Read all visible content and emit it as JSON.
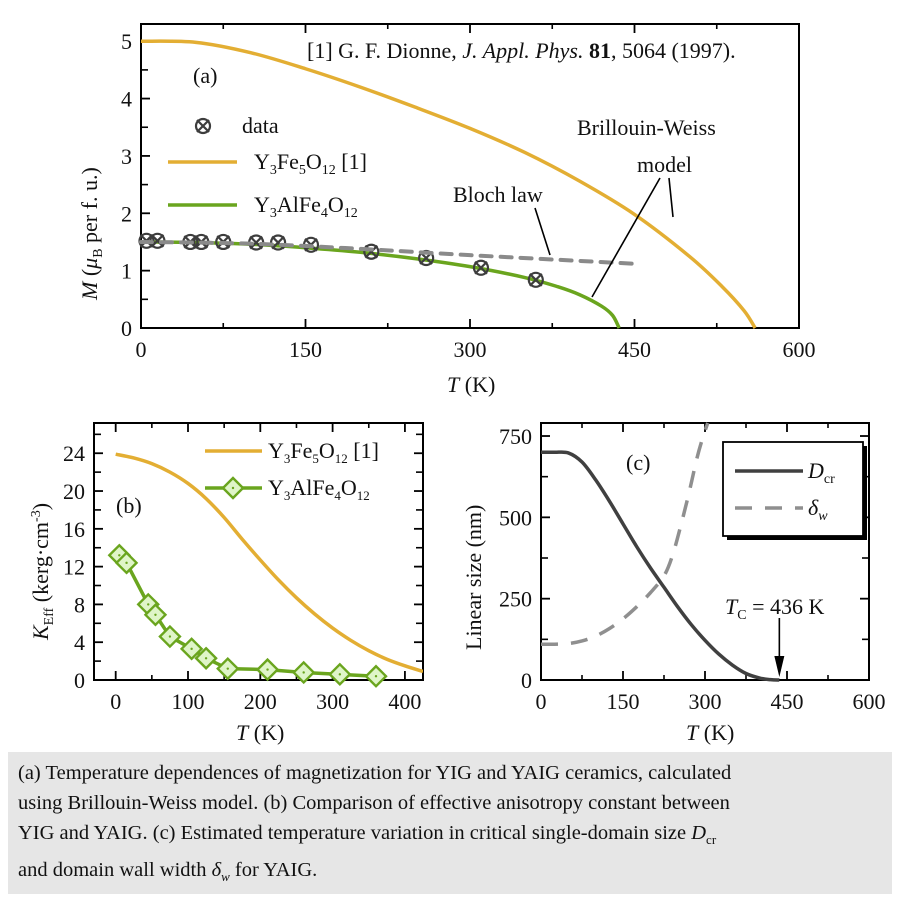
{
  "colors": {
    "yig": "#E3AE33",
    "yaig": "#6AA51E",
    "yaig_marker_fill": "#DFF5C8",
    "bloch": "#8A8A8A",
    "data_marker": "#3d3d3d",
    "dcr": "#404040",
    "delta_w": "#8F8F8F",
    "caption_bg": "#e6e6e6"
  },
  "caption": {
    "line1": "(a) Temperature dependences of magnetization for YIG and YAIG ceramics, calculated",
    "line2": "using Brillouin-Weiss model. (b) Comparison of effective anisotropy constant between",
    "line3_pre": "YIG and YAIG. (c) Estimated temperature variation in critical single-domain size ",
    "line3_sym": "D",
    "line3_sub": "cr",
    "line4_pre": "and domain wall width ",
    "line4_sym": "δ",
    "line4_sub": "w",
    "line4_post": " for YAIG."
  },
  "chart_data": [
    {
      "id": "a",
      "type": "line",
      "panel_label": "(a)",
      "reference": {
        "pre": "[1] G. F. Dionne, ",
        "journal": "J. Appl. Phys.",
        "vol": "81",
        "post": ", 5064 (1997)."
      },
      "xlabel": {
        "sym": "T",
        "unit": " (K)"
      },
      "ylabel": {
        "sym": "M",
        "open": " (",
        "mu": "μ",
        "mu_sub": "B",
        "rest": " per f. u.)"
      },
      "xlim": [
        0,
        600
      ],
      "ylim": [
        0,
        5.3
      ],
      "xticks": [
        0,
        150,
        300,
        450,
        600
      ],
      "xtick_labels": [
        "0",
        "150",
        "300",
        "450",
        "600"
      ],
      "xminor": [
        75,
        225,
        375,
        525
      ],
      "yticks": [
        0,
        1,
        2,
        3,
        4,
        5
      ],
      "ytick_labels": [
        "0",
        "1",
        "2",
        "3",
        "4",
        "5"
      ],
      "yminor": [
        0.5,
        1.5,
        2.5,
        3.5,
        4.5
      ],
      "legend": [
        {
          "label": "data",
          "kind": "marker"
        },
        {
          "label_main": "Y",
          "s1": "3",
          "m1": "Fe",
          "s2": "5",
          "m2": "O",
          "s3": "12",
          "tail": " [1]",
          "kind": "yig"
        },
        {
          "label_main": "Y",
          "s1": "3",
          "m1": "AlFe",
          "s2": "4",
          "m2": "O",
          "s3": "12",
          "tail": "",
          "kind": "yaig"
        }
      ],
      "annotations": {
        "bloch": "Bloch law",
        "bw1": "Brillouin-Weiss",
        "bw2": "model"
      },
      "series": [
        {
          "name": "Y3Fe5O12 [1] (Brillouin-Weiss)",
          "x": [
            0,
            50,
            100,
            150,
            200,
            250,
            300,
            350,
            400,
            450,
            500,
            530,
            550,
            560
          ],
          "y": [
            5.0,
            4.98,
            4.8,
            4.52,
            4.2,
            3.85,
            3.48,
            3.06,
            2.56,
            1.98,
            1.25,
            0.72,
            0.3,
            0.0
          ]
        },
        {
          "name": "Y3AlFe4O12 (Brillouin-Weiss)",
          "x": [
            0,
            50,
            100,
            150,
            200,
            250,
            300,
            350,
            380,
            400,
            420,
            430,
            436
          ],
          "y": [
            1.5,
            1.49,
            1.46,
            1.4,
            1.32,
            1.21,
            1.07,
            0.88,
            0.72,
            0.58,
            0.38,
            0.22,
            0.0
          ]
        },
        {
          "name": "Bloch law",
          "x": [
            0,
            100,
            200,
            300,
            450
          ],
          "y": [
            1.5,
            1.47,
            1.38,
            1.27,
            1.12
          ]
        },
        {
          "name": "data",
          "x": [
            5,
            15,
            45,
            55,
            75,
            105,
            125,
            155,
            210,
            260,
            310,
            360
          ],
          "y": [
            1.52,
            1.52,
            1.5,
            1.5,
            1.5,
            1.49,
            1.49,
            1.45,
            1.33,
            1.22,
            1.05,
            0.84
          ]
        }
      ]
    },
    {
      "id": "b",
      "type": "line",
      "panel_label": "(b)",
      "xlabel": {
        "sym": "T",
        "unit": " (K)"
      },
      "ylabel": {
        "sym": "K",
        "sub": "Eff",
        "rest": " (kerg·cm",
        "sup": "-3",
        "close": ")"
      },
      "xlim": [
        -30,
        425
      ],
      "ylim": [
        0,
        27.2
      ],
      "xticks": [
        0,
        100,
        200,
        300,
        400
      ],
      "xtick_labels": [
        "0",
        "100",
        "200",
        "300",
        "400"
      ],
      "xminor": [
        50,
        150,
        250,
        350
      ],
      "yticks": [
        0,
        4,
        8,
        12,
        16,
        20,
        24
      ],
      "ytick_labels": [
        "0",
        "4",
        "8",
        "12",
        "16",
        "20",
        "24"
      ],
      "yminor": [
        2,
        6,
        10,
        14,
        18,
        22,
        26
      ],
      "legend": [
        {
          "label_main": "Y",
          "s1": "3",
          "m1": "Fe",
          "s2": "5",
          "m2": "O",
          "s3": "12",
          "tail": " [1]",
          "kind": "yig"
        },
        {
          "label_main": "Y",
          "s1": "3",
          "m1": "AlFe",
          "s2": "4",
          "m2": "O",
          "s3": "12",
          "tail": "",
          "kind": "yaig"
        }
      ],
      "series": [
        {
          "name": "Y3Fe5O12 [1]",
          "x": [
            0,
            25,
            50,
            75,
            100,
            125,
            150,
            175,
            200,
            225,
            250,
            275,
            300,
            325,
            350,
            375,
            400,
            425
          ],
          "y": [
            23.9,
            23.5,
            22.9,
            22.0,
            20.8,
            19.2,
            17.2,
            14.9,
            12.7,
            10.6,
            8.7,
            7.0,
            5.5,
            4.2,
            3.1,
            2.2,
            1.5,
            0.9
          ]
        },
        {
          "name": "Y3AlFe4O12",
          "x": [
            5,
            15,
            45,
            55,
            75,
            105,
            125,
            155,
            210,
            260,
            310,
            360
          ],
          "y": [
            13.2,
            12.4,
            8.0,
            6.9,
            4.6,
            3.3,
            2.3,
            1.2,
            1.1,
            0.8,
            0.6,
            0.4
          ]
        }
      ]
    },
    {
      "id": "c",
      "type": "line",
      "panel_label": "(c)",
      "xlabel": {
        "sym": "T",
        "unit": " (K)"
      },
      "ylabel": {
        "text": "Linear size (nm)"
      },
      "xlim": [
        0,
        600
      ],
      "ylim": [
        0,
        790
      ],
      "xticks": [
        0,
        150,
        300,
        450,
        600
      ],
      "xtick_labels": [
        "0",
        "150",
        "300",
        "450",
        "600"
      ],
      "xminor": [
        75,
        225,
        375,
        525
      ],
      "yticks": [
        0,
        250,
        500,
        750
      ],
      "ytick_labels": [
        "0",
        "250",
        "500",
        "750"
      ],
      "yminor": [
        125,
        375,
        625
      ],
      "legend": [
        {
          "sym": "D",
          "sub": "cr",
          "kind": "dcr"
        },
        {
          "sym": "δ",
          "sub": "w",
          "kind": "dw"
        }
      ],
      "annotation": {
        "sym": "T",
        "sub": "C",
        "rest": " = 436 K",
        "arrow_x": 436
      },
      "series": [
        {
          "name": "Dcr",
          "x": [
            0,
            25,
            50,
            75,
            100,
            125,
            150,
            175,
            200,
            225,
            250,
            275,
            300,
            325,
            350,
            375,
            400,
            420,
            436
          ],
          "y": [
            700,
            700,
            698,
            670,
            615,
            550,
            480,
            410,
            345,
            285,
            225,
            170,
            122,
            80,
            46,
            20,
            6,
            1,
            0
          ]
        },
        {
          "name": "δw",
          "x": [
            0,
            25,
            50,
            75,
            100,
            125,
            150,
            175,
            200,
            225,
            240,
            255,
            270,
            285,
            295,
            305
          ],
          "y": [
            110,
            110,
            112,
            120,
            135,
            158,
            188,
            225,
            268,
            320,
            380,
            470,
            570,
            680,
            740,
            790
          ]
        }
      ]
    }
  ]
}
